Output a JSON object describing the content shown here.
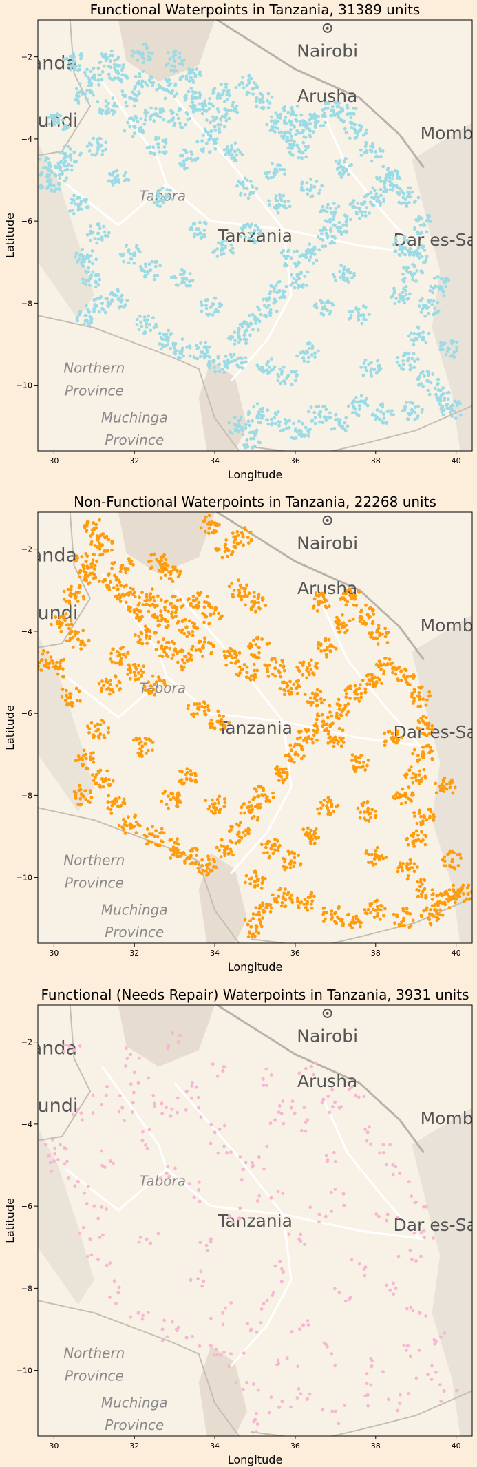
{
  "colors": {
    "figure_background": "#fdeedb",
    "map_land": "#f8f1e6",
    "map_water": "#d3dce1",
    "map_border": "#c9c4ba",
    "map_road": "#ffffff",
    "map_city_text": "#555555",
    "map_province_text": "#8a8a8a",
    "functional": "#9bdbe5",
    "non_functional": "#ff9c0e",
    "needs_repair": "#f7b6d2"
  },
  "map_labels": {
    "cities": [
      "Nairobi",
      "Arusha",
      "Momba",
      "Tanzania",
      "Dar es-Salaa"
    ],
    "regions": [
      "anda",
      "rundi",
      "Tabora",
      "Northern",
      "Province",
      "Muchinga",
      "Province"
    ]
  },
  "chart_data": [
    {
      "type": "scatter",
      "title": "Functional Waterpoints in Tanzania, 31389 units",
      "xlabel": "Longitude",
      "ylabel": "Latitude",
      "xlim": [
        29.6,
        40.4
      ],
      "ylim": [
        -11.6,
        -1.1
      ],
      "xticks": [
        30,
        32,
        34,
        36,
        38,
        40
      ],
      "yticks": [
        -2,
        -4,
        -6,
        -8,
        -10
      ],
      "grid": false,
      "color": "#9bdbe5",
      "points": [
        [
          30.5,
          -2.1
        ],
        [
          30.7,
          -2.9
        ],
        [
          31.0,
          -2.5
        ],
        [
          31.3,
          -3.2
        ],
        [
          31.6,
          -2.4
        ],
        [
          31.9,
          -3.0
        ],
        [
          32.2,
          -2.6
        ],
        [
          32.5,
          -3.4
        ],
        [
          32.8,
          -2.8
        ],
        [
          33.1,
          -3.5
        ],
        [
          33.4,
          -2.5
        ],
        [
          33.0,
          -2.1
        ],
        [
          32.2,
          -1.9
        ],
        [
          33.7,
          -3.2
        ],
        [
          34.0,
          -3.7
        ],
        [
          34.3,
          -3.3
        ],
        [
          33.8,
          -4.1
        ],
        [
          34.5,
          -4.3
        ],
        [
          34.2,
          -2.9
        ],
        [
          34.8,
          -2.7
        ],
        [
          35.2,
          -3.1
        ],
        [
          35.5,
          -3.6
        ],
        [
          35.9,
          -3.4
        ],
        [
          36.2,
          -3.8
        ],
        [
          36.5,
          -3.6
        ],
        [
          36.9,
          -3.3
        ],
        [
          37.3,
          -3.4
        ],
        [
          37.5,
          -3.8
        ],
        [
          36.1,
          -4.3
        ],
        [
          35.5,
          -4.8
        ],
        [
          34.8,
          -5.2
        ],
        [
          33.3,
          -4.5
        ],
        [
          32.6,
          -4.2
        ],
        [
          32.0,
          -3.7
        ],
        [
          31.1,
          -4.2
        ],
        [
          30.4,
          -4.4
        ],
        [
          29.8,
          -4.7
        ],
        [
          29.9,
          -5.1
        ],
        [
          30.2,
          -4.8
        ],
        [
          30.6,
          -5.6
        ],
        [
          31.1,
          -6.3
        ],
        [
          30.8,
          -6.9
        ],
        [
          31.9,
          -6.8
        ],
        [
          31.6,
          -7.9
        ],
        [
          30.9,
          -7.4
        ],
        [
          32.3,
          -8.5
        ],
        [
          32.8,
          -8.9
        ],
        [
          33.2,
          -9.1
        ],
        [
          33.7,
          -9.2
        ],
        [
          34.1,
          -9.5
        ],
        [
          34.5,
          -9.4
        ],
        [
          34.6,
          -8.8
        ],
        [
          34.9,
          -8.5
        ],
        [
          35.3,
          -8.1
        ],
        [
          35.6,
          -7.7
        ],
        [
          36.1,
          -7.4
        ],
        [
          36.4,
          -6.8
        ],
        [
          36.8,
          -6.4
        ],
        [
          37.2,
          -6.1
        ],
        [
          37.6,
          -5.7
        ],
        [
          38.0,
          -5.4
        ],
        [
          38.4,
          -5.1
        ],
        [
          38.8,
          -5.4
        ],
        [
          39.2,
          -6.1
        ],
        [
          39.1,
          -6.8
        ],
        [
          38.9,
          -7.3
        ],
        [
          38.6,
          -7.8
        ],
        [
          39.3,
          -8.1
        ],
        [
          39.1,
          -8.8
        ],
        [
          38.8,
          -9.4
        ],
        [
          39.3,
          -9.9
        ],
        [
          39.6,
          -10.3
        ],
        [
          38.9,
          -10.6
        ],
        [
          38.2,
          -10.7
        ],
        [
          37.6,
          -10.5
        ],
        [
          37.1,
          -10.9
        ],
        [
          36.6,
          -10.7
        ],
        [
          36.1,
          -11.1
        ],
        [
          35.6,
          -10.9
        ],
        [
          35.1,
          -10.7
        ],
        [
          34.9,
          -11.3
        ],
        [
          35.8,
          -9.8
        ],
        [
          36.3,
          -9.2
        ],
        [
          35.3,
          -9.5
        ],
        [
          34.9,
          -6.3
        ],
        [
          35.6,
          -5.6
        ],
        [
          36.4,
          -5.2
        ],
        [
          37.2,
          -4.7
        ],
        [
          37.9,
          -4.3
        ],
        [
          38.3,
          -4.9
        ],
        [
          35.9,
          -6.9
        ],
        [
          37.2,
          -7.3
        ],
        [
          37.6,
          -8.3
        ],
        [
          36.7,
          -8.1
        ],
        [
          33.6,
          -6.2
        ],
        [
          34.2,
          -6.7
        ],
        [
          32.7,
          -5.4
        ],
        [
          31.6,
          -5.0
        ],
        [
          33.2,
          -7.4
        ],
        [
          33.9,
          -8.1
        ],
        [
          32.4,
          -7.2
        ],
        [
          30.8,
          -8.3
        ],
        [
          31.2,
          -8.0
        ],
        [
          38.6,
          -6.6
        ],
        [
          39.6,
          -7.6
        ],
        [
          37.9,
          -9.6
        ],
        [
          39.8,
          -9.1
        ],
        [
          39.9,
          -10.6
        ],
        [
          34.6,
          -11.0
        ],
        [
          36.9,
          -5.8
        ],
        [
          35.8,
          -4.0
        ],
        [
          33.5,
          -3.0
        ],
        [
          31.4,
          -2.1
        ],
        [
          30.1,
          -3.6
        ]
      ]
    },
    {
      "type": "scatter",
      "title": "Non-Functional Waterpoints in Tanzania, 22268 units",
      "xlabel": "Longitude",
      "ylabel": "Latitude",
      "xlim": [
        29.6,
        40.4
      ],
      "ylim": [
        -11.6,
        -1.1
      ],
      "xticks": [
        30,
        32,
        34,
        36,
        38,
        40
      ],
      "yticks": [
        -2,
        -4,
        -6,
        -8,
        -10
      ],
      "grid": false,
      "color": "#ff9c0e",
      "points": [
        [
          31.0,
          -1.5
        ],
        [
          31.2,
          -1.9
        ],
        [
          30.8,
          -2.3
        ],
        [
          31.4,
          -2.8
        ],
        [
          31.8,
          -3.1
        ],
        [
          32.1,
          -3.5
        ],
        [
          32.4,
          -3.2
        ],
        [
          32.7,
          -3.7
        ],
        [
          33.0,
          -3.4
        ],
        [
          33.3,
          -3.9
        ],
        [
          33.6,
          -3.3
        ],
        [
          33.9,
          -3.6
        ],
        [
          32.3,
          -4.1
        ],
        [
          32.8,
          -4.4
        ],
        [
          33.2,
          -4.7
        ],
        [
          31.6,
          -4.6
        ],
        [
          32.0,
          -5.0
        ],
        [
          32.5,
          -5.3
        ],
        [
          30.9,
          -2.6
        ],
        [
          30.5,
          -3.1
        ],
        [
          30.2,
          -3.8
        ],
        [
          29.7,
          -4.7
        ],
        [
          30.1,
          -4.9
        ],
        [
          30.4,
          -5.6
        ],
        [
          31.1,
          -6.4
        ],
        [
          30.8,
          -7.1
        ],
        [
          31.2,
          -7.6
        ],
        [
          31.5,
          -8.2
        ],
        [
          31.9,
          -8.7
        ],
        [
          32.5,
          -9.0
        ],
        [
          33.0,
          -9.3
        ],
        [
          33.4,
          -9.5
        ],
        [
          33.8,
          -9.7
        ],
        [
          34.3,
          -9.3
        ],
        [
          34.6,
          -8.9
        ],
        [
          34.9,
          -8.4
        ],
        [
          35.2,
          -8.0
        ],
        [
          35.6,
          -7.5
        ],
        [
          36.0,
          -7.0
        ],
        [
          36.3,
          -6.6
        ],
        [
          36.7,
          -6.2
        ],
        [
          37.1,
          -5.9
        ],
        [
          37.5,
          -5.5
        ],
        [
          37.9,
          -5.2
        ],
        [
          38.3,
          -4.8
        ],
        [
          38.7,
          -5.1
        ],
        [
          39.1,
          -5.6
        ],
        [
          39.3,
          -6.3
        ],
        [
          39.2,
          -7.0
        ],
        [
          39.0,
          -7.5
        ],
        [
          38.7,
          -8.0
        ],
        [
          39.2,
          -8.5
        ],
        [
          39.0,
          -9.1
        ],
        [
          38.8,
          -9.8
        ],
        [
          39.2,
          -10.3
        ],
        [
          39.6,
          -10.6
        ],
        [
          40.0,
          -10.4
        ],
        [
          40.3,
          -10.4
        ],
        [
          39.4,
          -10.9
        ],
        [
          38.7,
          -11.0
        ],
        [
          38.0,
          -10.8
        ],
        [
          37.4,
          -11.1
        ],
        [
          36.9,
          -10.9
        ],
        [
          36.3,
          -10.6
        ],
        [
          35.7,
          -10.5
        ],
        [
          35.2,
          -10.8
        ],
        [
          34.9,
          -11.2
        ],
        [
          35.0,
          -10.1
        ],
        [
          35.9,
          -9.6
        ],
        [
          36.4,
          -9.0
        ],
        [
          35.4,
          -9.3
        ],
        [
          34.8,
          -5.0
        ],
        [
          34.4,
          -4.6
        ],
        [
          35.1,
          -4.4
        ],
        [
          35.5,
          -4.9
        ],
        [
          35.9,
          -5.4
        ],
        [
          36.3,
          -4.9
        ],
        [
          36.8,
          -4.4
        ],
        [
          37.2,
          -3.8
        ],
        [
          36.6,
          -3.3
        ],
        [
          37.4,
          -3.2
        ],
        [
          37.8,
          -3.6
        ],
        [
          38.1,
          -4.1
        ],
        [
          35.0,
          -3.3
        ],
        [
          34.3,
          -2.0
        ],
        [
          34.7,
          -1.7
        ],
        [
          33.9,
          -1.4
        ],
        [
          32.6,
          -2.3
        ],
        [
          32.9,
          -2.6
        ],
        [
          33.6,
          -5.9
        ],
        [
          34.1,
          -6.2
        ],
        [
          37.0,
          -6.6
        ],
        [
          37.6,
          -7.2
        ],
        [
          37.8,
          -8.4
        ],
        [
          36.8,
          -8.3
        ],
        [
          33.3,
          -7.6
        ],
        [
          34.0,
          -8.2
        ],
        [
          30.7,
          -8.0
        ],
        [
          32.2,
          -6.8
        ],
        [
          38.4,
          -6.6
        ],
        [
          39.7,
          -7.8
        ],
        [
          38.0,
          -9.5
        ],
        [
          39.9,
          -9.6
        ],
        [
          36.5,
          -5.6
        ],
        [
          33.7,
          -4.4
        ],
        [
          34.6,
          -3.0
        ],
        [
          31.7,
          -2.4
        ],
        [
          30.6,
          -4.2
        ],
        [
          31.4,
          -5.3
        ],
        [
          32.9,
          -8.1
        ]
      ]
    },
    {
      "type": "scatter",
      "title": "Functional (Needs Repair) Waterpoints in Tanzania, 3931 units",
      "xlabel": "Longitude",
      "ylabel": "Latitude",
      "xlim": [
        29.6,
        40.4
      ],
      "ylim": [
        -11.6,
        -1.1
      ],
      "xticks": [
        30,
        32,
        34,
        36,
        38,
        40
      ],
      "yticks": [
        -2,
        -4,
        -6,
        -8,
        -10
      ],
      "grid": false,
      "color": "#f7b6d2",
      "points": [
        [
          29.8,
          -4.5
        ],
        [
          30.0,
          -4.9
        ],
        [
          30.3,
          -4.6
        ],
        [
          30.6,
          -5.4
        ],
        [
          31.0,
          -6.0
        ],
        [
          31.3,
          -3.3
        ],
        [
          31.7,
          -3.6
        ],
        [
          32.1,
          -3.0
        ],
        [
          32.5,
          -3.5
        ],
        [
          32.9,
          -3.8
        ],
        [
          33.3,
          -3.2
        ],
        [
          33.6,
          -3.6
        ],
        [
          34.0,
          -4.2
        ],
        [
          34.3,
          -4.7
        ],
        [
          34.7,
          -5.1
        ],
        [
          35.1,
          -4.8
        ],
        [
          35.5,
          -3.9
        ],
        [
          35.9,
          -3.6
        ],
        [
          36.3,
          -3.9
        ],
        [
          36.7,
          -3.4
        ],
        [
          37.1,
          -3.6
        ],
        [
          37.5,
          -3.3
        ],
        [
          37.8,
          -4.2
        ],
        [
          38.2,
          -4.7
        ],
        [
          38.6,
          -5.2
        ],
        [
          39.0,
          -5.9
        ],
        [
          39.2,
          -6.6
        ],
        [
          38.9,
          -7.3
        ],
        [
          38.5,
          -8.0
        ],
        [
          39.1,
          -8.6
        ],
        [
          38.8,
          -9.4
        ],
        [
          39.3,
          -10.1
        ],
        [
          39.7,
          -10.5
        ],
        [
          38.6,
          -10.8
        ],
        [
          37.8,
          -10.6
        ],
        [
          37.0,
          -11.0
        ],
        [
          36.3,
          -10.7
        ],
        [
          35.6,
          -10.9
        ],
        [
          35.0,
          -11.2
        ],
        [
          34.4,
          -9.6
        ],
        [
          33.9,
          -9.4
        ],
        [
          33.3,
          -9.2
        ],
        [
          32.7,
          -9.0
        ],
        [
          32.1,
          -8.6
        ],
        [
          31.6,
          -8.1
        ],
        [
          31.1,
          -7.3
        ],
        [
          30.9,
          -6.8
        ],
        [
          35.8,
          -9.7
        ],
        [
          36.2,
          -8.9
        ],
        [
          35.3,
          -8.3
        ],
        [
          35.7,
          -7.6
        ],
        [
          36.1,
          -6.8
        ],
        [
          36.6,
          -6.2
        ],
        [
          37.2,
          -5.7
        ],
        [
          37.6,
          -7.4
        ],
        [
          37.1,
          -8.1
        ],
        [
          34.6,
          -6.3
        ],
        [
          33.9,
          -6.8
        ],
        [
          32.8,
          -5.2
        ],
        [
          32.2,
          -4.4
        ],
        [
          33.4,
          -7.8
        ],
        [
          34.2,
          -8.6
        ],
        [
          34.9,
          -9.0
        ],
        [
          36.8,
          -4.9
        ],
        [
          35.4,
          -5.8
        ],
        [
          30.5,
          -2.2
        ],
        [
          31.9,
          -2.3
        ],
        [
          33.1,
          -2.0
        ],
        [
          34.2,
          -2.7
        ],
        [
          35.2,
          -2.9
        ],
        [
          36.4,
          -2.6
        ],
        [
          37.9,
          -9.9
        ],
        [
          39.5,
          -9.3
        ],
        [
          38.3,
          -6.2
        ],
        [
          36.9,
          -9.6
        ],
        [
          32.4,
          -6.9
        ],
        [
          30.7,
          -3.9
        ],
        [
          31.4,
          -4.9
        ],
        [
          34.8,
          -10.3
        ],
        [
          33.6,
          -5.6
        ]
      ]
    }
  ]
}
